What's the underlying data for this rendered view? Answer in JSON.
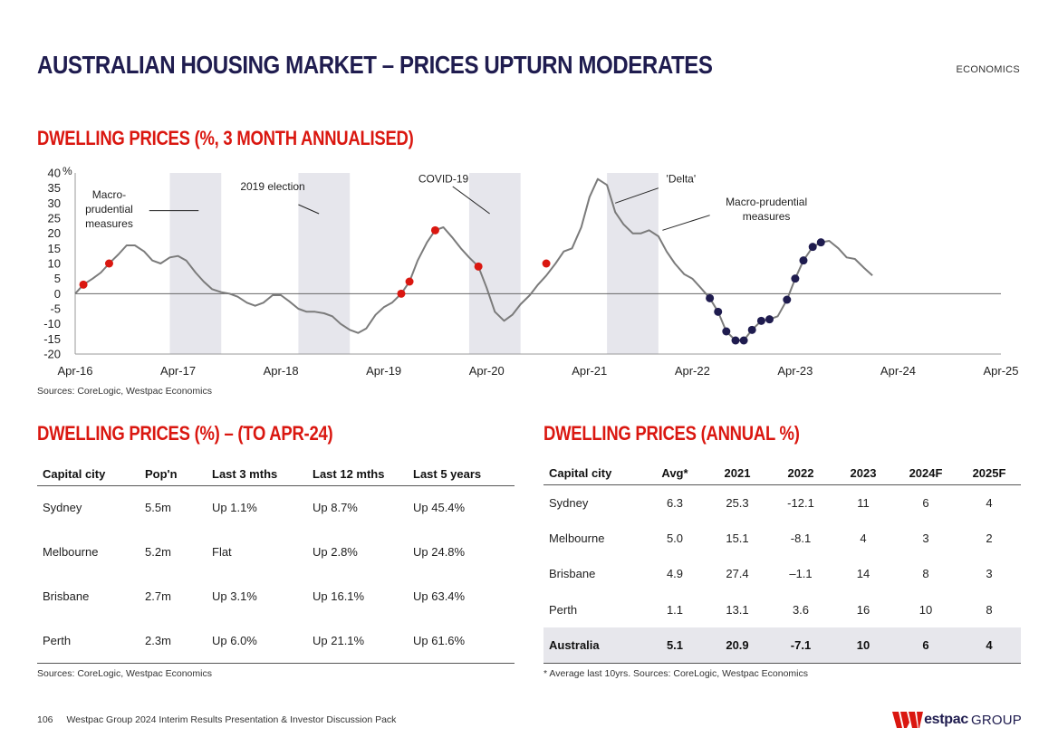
{
  "header": {
    "title": "AUSTRALIAN HOUSING MARKET – PRICES UPTURN MODERATES",
    "section": "ECONOMICS"
  },
  "colors": {
    "navy": "#1f1c4f",
    "red": "#da1710",
    "line": "#7b7b7b",
    "band": "#e6e6ec"
  },
  "chart_data": {
    "type": "line",
    "title": "DWELLING PRICES (%, 3 MONTH ANNUALISED)",
    "ylabel": "%",
    "ylim": [
      -20,
      40
    ],
    "yticks": [
      40,
      35,
      30,
      25,
      20,
      15,
      10,
      5,
      0,
      -5,
      -10,
      -15,
      -20
    ],
    "xlim": [
      2016.25,
      2025.25
    ],
    "xticks": [
      {
        "x": 2016.25,
        "label": "Apr-16"
      },
      {
        "x": 2017.25,
        "label": "Apr-17"
      },
      {
        "x": 2018.25,
        "label": "Apr-18"
      },
      {
        "x": 2019.25,
        "label": "Apr-19"
      },
      {
        "x": 2020.25,
        "label": "Apr-20"
      },
      {
        "x": 2021.25,
        "label": "Apr-21"
      },
      {
        "x": 2022.25,
        "label": "Apr-22"
      },
      {
        "x": 2023.25,
        "label": "Apr-23"
      },
      {
        "x": 2024.25,
        "label": "Apr-24"
      },
      {
        "x": 2025.25,
        "label": "Apr-25"
      }
    ],
    "series": [
      {
        "name": "Dwelling prices",
        "points": [
          [
            2016.25,
            0
          ],
          [
            2016.33,
            3
          ],
          [
            2016.42,
            5
          ],
          [
            2016.5,
            7
          ],
          [
            2016.58,
            10
          ],
          [
            2016.67,
            13
          ],
          [
            2016.75,
            16
          ],
          [
            2016.83,
            16
          ],
          [
            2016.92,
            14
          ],
          [
            2017.0,
            11
          ],
          [
            2017.08,
            10
          ],
          [
            2017.17,
            12
          ],
          [
            2017.25,
            12.5
          ],
          [
            2017.33,
            11
          ],
          [
            2017.42,
            7
          ],
          [
            2017.5,
            4
          ],
          [
            2017.58,
            1.5
          ],
          [
            2017.67,
            0.5
          ],
          [
            2017.75,
            0
          ],
          [
            2017.83,
            -1
          ],
          [
            2017.92,
            -3
          ],
          [
            2018.0,
            -4
          ],
          [
            2018.08,
            -3
          ],
          [
            2018.17,
            -0.5
          ],
          [
            2018.25,
            -0.5
          ],
          [
            2018.33,
            -2.5
          ],
          [
            2018.42,
            -5
          ],
          [
            2018.5,
            -6
          ],
          [
            2018.58,
            -6
          ],
          [
            2018.67,
            -6.5
          ],
          [
            2018.75,
            -7.5
          ],
          [
            2018.83,
            -10
          ],
          [
            2018.92,
            -12
          ],
          [
            2019.0,
            -13
          ],
          [
            2019.08,
            -11.5
          ],
          [
            2019.17,
            -7
          ],
          [
            2019.25,
            -4.5
          ],
          [
            2019.33,
            -3
          ],
          [
            2019.42,
            0
          ],
          [
            2019.5,
            4
          ],
          [
            2019.58,
            11
          ],
          [
            2019.67,
            17
          ],
          [
            2019.75,
            21
          ],
          [
            2019.83,
            22
          ],
          [
            2019.92,
            18.5
          ],
          [
            2020.0,
            15
          ],
          [
            2020.08,
            12
          ],
          [
            2020.17,
            9
          ],
          [
            2020.25,
            2
          ],
          [
            2020.33,
            -6
          ],
          [
            2020.42,
            -9
          ],
          [
            2020.5,
            -7
          ],
          [
            2020.58,
            -3.5
          ],
          [
            2020.67,
            -0.5
          ],
          [
            2020.75,
            3
          ],
          [
            2020.83,
            6
          ],
          [
            2020.92,
            10
          ],
          [
            2021.0,
            14
          ],
          [
            2021.08,
            15
          ],
          [
            2021.17,
            22
          ],
          [
            2021.25,
            32
          ],
          [
            2021.33,
            38
          ],
          [
            2021.42,
            36
          ],
          [
            2021.5,
            27
          ],
          [
            2021.58,
            23
          ],
          [
            2021.67,
            20
          ],
          [
            2021.75,
            20
          ],
          [
            2021.83,
            21
          ],
          [
            2021.92,
            19
          ],
          [
            2022.0,
            14
          ],
          [
            2022.08,
            10
          ],
          [
            2022.17,
            6.5
          ],
          [
            2022.25,
            5
          ],
          [
            2022.33,
            2
          ],
          [
            2022.42,
            -1.5
          ],
          [
            2022.5,
            -6
          ],
          [
            2022.58,
            -12.5
          ],
          [
            2022.67,
            -15.5
          ],
          [
            2022.75,
            -15.5
          ],
          [
            2022.83,
            -12
          ],
          [
            2022.92,
            -9
          ],
          [
            2023.0,
            -8.5
          ],
          [
            2023.08,
            -7.5
          ],
          [
            2023.17,
            -2
          ],
          [
            2023.25,
            5
          ],
          [
            2023.33,
            11
          ],
          [
            2023.42,
            15.5
          ],
          [
            2023.5,
            17
          ],
          [
            2023.58,
            17.5
          ],
          [
            2023.67,
            15
          ],
          [
            2023.75,
            12
          ],
          [
            2023.83,
            11.5
          ],
          [
            2023.92,
            8.5
          ],
          [
            2024.0,
            6
          ]
        ]
      }
    ],
    "highlight_points": [
      {
        "x": 2016.33,
        "y": 3,
        "color": "red"
      },
      {
        "x": 2016.58,
        "y": 10,
        "color": "red"
      },
      {
        "x": 2019.42,
        "y": 0,
        "color": "red"
      },
      {
        "x": 2019.5,
        "y": 4,
        "color": "red"
      },
      {
        "x": 2019.75,
        "y": 21,
        "color": "red"
      },
      {
        "x": 2020.17,
        "y": 9,
        "color": "red"
      },
      {
        "x": 2020.83,
        "y": 10,
        "color": "red"
      },
      {
        "x": 2022.42,
        "y": -1.5,
        "color": "navy"
      },
      {
        "x": 2022.5,
        "y": -6,
        "color": "navy"
      },
      {
        "x": 2022.58,
        "y": -12.5,
        "color": "navy"
      },
      {
        "x": 2022.67,
        "y": -15.5,
        "color": "navy"
      },
      {
        "x": 2022.75,
        "y": -15.5,
        "color": "navy"
      },
      {
        "x": 2022.83,
        "y": -12,
        "color": "navy"
      },
      {
        "x": 2022.92,
        "y": -9,
        "color": "navy"
      },
      {
        "x": 2023.0,
        "y": -8.5,
        "color": "navy"
      },
      {
        "x": 2023.17,
        "y": -2,
        "color": "navy"
      },
      {
        "x": 2023.25,
        "y": 5,
        "color": "navy"
      },
      {
        "x": 2023.33,
        "y": 11,
        "color": "navy"
      },
      {
        "x": 2023.42,
        "y": 15.5,
        "color": "navy"
      },
      {
        "x": 2023.5,
        "y": 17,
        "color": "navy"
      }
    ],
    "shaded_periods": [
      {
        "start": 2017.17,
        "end": 2017.67
      },
      {
        "start": 2018.42,
        "end": 2018.92
      },
      {
        "start": 2020.08,
        "end": 2020.58
      },
      {
        "start": 2021.42,
        "end": 2021.92
      }
    ],
    "annotations": [
      {
        "text": "Macro-\nprudential\nmeasures",
        "at": [
          2016.58,
          28
        ],
        "pointer": [
          2016.97,
          27.5
        ],
        "target": [
          2017.45,
          27.5
        ],
        "align": "middle"
      },
      {
        "text": "2019 election",
        "at": [
          2018.17,
          35.5
        ],
        "pointer": [
          2018.42,
          29.5
        ],
        "target": [
          2018.62,
          26.5
        ],
        "align": "middle"
      },
      {
        "text": "COVID-19",
        "at": [
          2019.83,
          38
        ],
        "pointer": [
          2019.92,
          35.5
        ],
        "target": [
          2020.28,
          26.5
        ],
        "align": "middle"
      },
      {
        "text": "'Delta'",
        "at": [
          2022.14,
          38
        ],
        "pointer": [
          2021.92,
          35
        ],
        "target": [
          2021.5,
          30
        ],
        "align": "middle"
      },
      {
        "text": "Macro-prudential\nmeasures",
        "at": [
          2022.97,
          28
        ],
        "pointer": [
          2022.42,
          26
        ],
        "target": [
          2021.96,
          21
        ],
        "align": "middle"
      }
    ]
  },
  "chart_source": "Sources: CoreLogic, Westpac Economics",
  "table1": {
    "title": "DWELLING PRICES (%) – (TO APR-24)",
    "headers": [
      "Capital city",
      "Pop'n",
      "Last 3 mths",
      "Last 12 mths",
      "Last 5 years"
    ],
    "rows": [
      [
        "Sydney",
        "5.5m",
        "Up 1.1%",
        "Up 8.7%",
        "Up 45.4%"
      ],
      [
        "Melbourne",
        "5.2m",
        "Flat",
        "Up 2.8%",
        "Up 24.8%"
      ],
      [
        "Brisbane",
        "2.7m",
        "Up 3.1%",
        "Up 16.1%",
        "Up 63.4%"
      ],
      [
        "Perth",
        "2.3m",
        "Up 6.0%",
        "Up 21.1%",
        "Up 61.6%"
      ]
    ],
    "source": "Sources: CoreLogic, Westpac Economics"
  },
  "table2": {
    "title": "DWELLING PRICES (ANNUAL %)",
    "headers": [
      "Capital city",
      "Avg*",
      "2021",
      "2022",
      "2023",
      "2024F",
      "2025F"
    ],
    "rows": [
      [
        "Sydney",
        "6.3",
        "25.3",
        "-12.1",
        "11",
        "6",
        "4"
      ],
      [
        "Melbourne",
        "5.0",
        "15.1",
        "-8.1",
        "4",
        "3",
        "2"
      ],
      [
        "Brisbane",
        "4.9",
        "27.4",
        "–1.1",
        "14",
        "8",
        "3"
      ],
      [
        "Perth",
        "1.1",
        "13.1",
        "3.6",
        "16",
        "10",
        "8"
      ]
    ],
    "total": [
      "Australia",
      "5.1",
      "20.9",
      "-7.1",
      "10",
      "6",
      "4"
    ],
    "source": "* Average last 10yrs. Sources: CoreLogic, Westpac Economics"
  },
  "footer": {
    "page": "106",
    "text": "Westpac Group 2024 Interim Results Presentation & Investor Discussion Pack",
    "logo_word": "estpac",
    "logo_group": "GROUP"
  }
}
